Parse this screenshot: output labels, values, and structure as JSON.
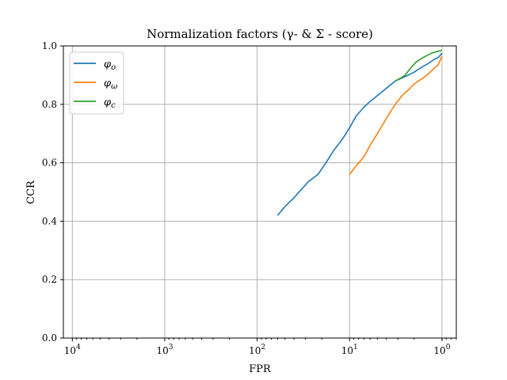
{
  "chart_data": {
    "type": "line",
    "title": "Normalization factors (γ- & Σ - score)",
    "xlabel": "FPR",
    "ylabel": "CCR",
    "xscale": "reversed-log",
    "xlim": [
      12500,
      0.7
    ],
    "ylim": [
      0,
      1
    ],
    "grid": true,
    "legend_position": "top-left",
    "x_ticks": [
      {
        "value": 10000,
        "base": "10",
        "exp": "4"
      },
      {
        "value": 1000,
        "base": "10",
        "exp": "3"
      },
      {
        "value": 100,
        "base": "10",
        "exp": "2"
      },
      {
        "value": 10,
        "base": "10",
        "exp": "1"
      },
      {
        "value": 1,
        "base": "10",
        "exp": "0"
      }
    ],
    "y_ticks": [
      {
        "value": 0.0,
        "label": "0.0"
      },
      {
        "value": 0.2,
        "label": "0.2"
      },
      {
        "value": 0.4,
        "label": "0.4"
      },
      {
        "value": 0.6,
        "label": "0.6"
      },
      {
        "value": 0.8,
        "label": "0.8"
      },
      {
        "value": 1.0,
        "label": "1.0"
      }
    ],
    "series": [
      {
        "name": "φ",
        "subscript": "o",
        "color": "#1f77b4",
        "points": [
          [
            60,
            0.42
          ],
          [
            50,
            0.45
          ],
          [
            40,
            0.48
          ],
          [
            33,
            0.51
          ],
          [
            28,
            0.535
          ],
          [
            22,
            0.56
          ],
          [
            18,
            0.6
          ],
          [
            15,
            0.64
          ],
          [
            12,
            0.68
          ],
          [
            10,
            0.72
          ],
          [
            8.5,
            0.76
          ],
          [
            7,
            0.79
          ],
          [
            6,
            0.81
          ],
          [
            5,
            0.83
          ],
          [
            4,
            0.855
          ],
          [
            3.2,
            0.88
          ],
          [
            2.5,
            0.895
          ],
          [
            2,
            0.91
          ],
          [
            1.8,
            0.92
          ],
          [
            1.6,
            0.93
          ],
          [
            1.4,
            0.94
          ],
          [
            1.2,
            0.955
          ],
          [
            1.1,
            0.96
          ],
          [
            1,
            0.975
          ]
        ]
      },
      {
        "name": "φ",
        "subscript": "ω",
        "color": "#ff7f0e",
        "points": [
          [
            10,
            0.56
          ],
          [
            8.5,
            0.59
          ],
          [
            7,
            0.62
          ],
          [
            6,
            0.66
          ],
          [
            5,
            0.7
          ],
          [
            4.2,
            0.74
          ],
          [
            3.7,
            0.77
          ],
          [
            3.2,
            0.8
          ],
          [
            2.7,
            0.83
          ],
          [
            2.3,
            0.85
          ],
          [
            2,
            0.87
          ],
          [
            1.8,
            0.88
          ],
          [
            1.6,
            0.89
          ],
          [
            1.4,
            0.905
          ],
          [
            1.3,
            0.915
          ],
          [
            1.2,
            0.925
          ],
          [
            1.1,
            0.935
          ],
          [
            1,
            0.965
          ]
        ]
      },
      {
        "name": "φ",
        "subscript": "c",
        "color": "#2ca02c",
        "points": [
          [
            3.2,
            0.88
          ],
          [
            2.8,
            0.89
          ],
          [
            2.5,
            0.9
          ],
          [
            2.3,
            0.915
          ],
          [
            2.1,
            0.93
          ],
          [
            1.9,
            0.945
          ],
          [
            1.7,
            0.955
          ],
          [
            1.5,
            0.965
          ],
          [
            1.3,
            0.975
          ],
          [
            1.1,
            0.982
          ],
          [
            1,
            0.985
          ]
        ]
      }
    ]
  }
}
